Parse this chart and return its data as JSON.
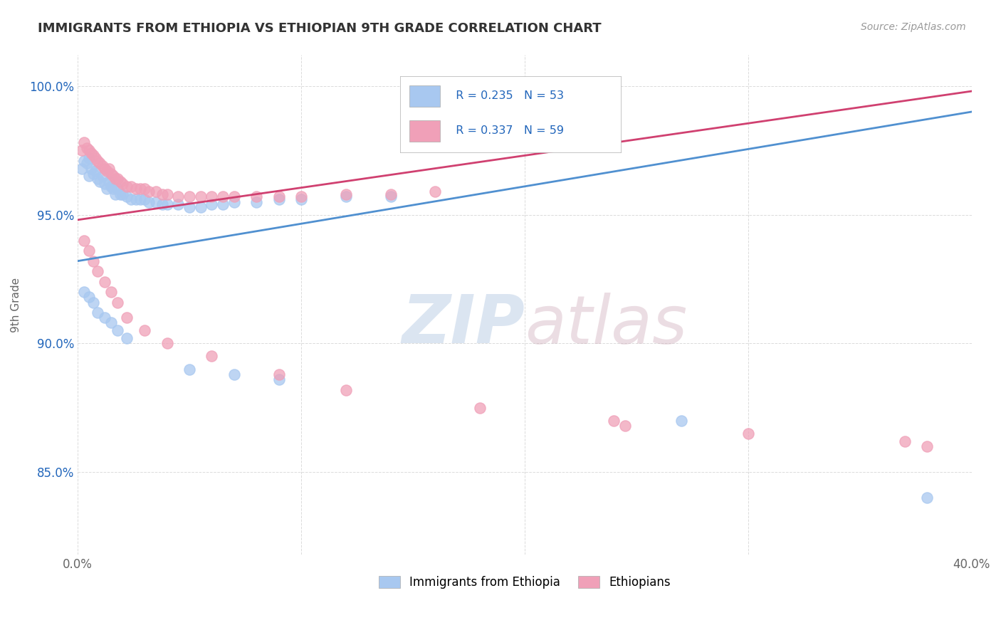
{
  "title": "IMMIGRANTS FROM ETHIOPIA VS ETHIOPIAN 9TH GRADE CORRELATION CHART",
  "source_text": "Source: ZipAtlas.com",
  "ylabel": "9th Grade",
  "xlim": [
    0.0,
    0.4
  ],
  "ylim": [
    0.818,
    1.012
  ],
  "y_ticks": [
    0.85,
    0.9,
    0.95,
    1.0
  ],
  "y_tick_labels": [
    "85.0%",
    "90.0%",
    "95.0%",
    "100.0%"
  ],
  "blue_color": "#a8c8f0",
  "pink_color": "#f0a0b8",
  "blue_line_color": "#5090d0",
  "pink_line_color": "#d04070",
  "legend_R_blue": "R = 0.235",
  "legend_N_blue": "N = 53",
  "legend_R_pink": "R = 0.337",
  "legend_N_pink": "N = 59",
  "legend_label_blue": "Immigrants from Ethiopia",
  "legend_label_pink": "Ethiopians",
  "title_color": "#333333",
  "axis_color": "#666666",
  "legend_text_color": "#2266bb",
  "watermark_zip": "ZIP",
  "watermark_atlas": "atlas",
  "background_color": "#ffffff",
  "blue_scatter_x": [
    0.002,
    0.003,
    0.004,
    0.005,
    0.005,
    0.006,
    0.007,
    0.008,
    0.009,
    0.01,
    0.011,
    0.012,
    0.013,
    0.014,
    0.015,
    0.016,
    0.017,
    0.018,
    0.019,
    0.02,
    0.022,
    0.024,
    0.026,
    0.028,
    0.03,
    0.032,
    0.035,
    0.038,
    0.04,
    0.045,
    0.05,
    0.055,
    0.06,
    0.065,
    0.07,
    0.08,
    0.09,
    0.1,
    0.12,
    0.14,
    0.003,
    0.005,
    0.007,
    0.009,
    0.012,
    0.015,
    0.018,
    0.022,
    0.05,
    0.07,
    0.09,
    0.27,
    0.38
  ],
  "blue_scatter_y": [
    0.968,
    0.971,
    0.97,
    0.972,
    0.965,
    0.968,
    0.966,
    0.967,
    0.964,
    0.963,
    0.965,
    0.962,
    0.96,
    0.963,
    0.961,
    0.96,
    0.958,
    0.96,
    0.958,
    0.958,
    0.957,
    0.956,
    0.956,
    0.956,
    0.956,
    0.955,
    0.955,
    0.954,
    0.954,
    0.954,
    0.953,
    0.953,
    0.954,
    0.954,
    0.955,
    0.955,
    0.956,
    0.956,
    0.957,
    0.957,
    0.92,
    0.918,
    0.916,
    0.912,
    0.91,
    0.908,
    0.905,
    0.902,
    0.89,
    0.888,
    0.886,
    0.87,
    0.84
  ],
  "pink_scatter_x": [
    0.002,
    0.003,
    0.004,
    0.005,
    0.006,
    0.007,
    0.008,
    0.009,
    0.01,
    0.011,
    0.012,
    0.013,
    0.014,
    0.015,
    0.016,
    0.017,
    0.018,
    0.019,
    0.02,
    0.022,
    0.024,
    0.026,
    0.028,
    0.03,
    0.032,
    0.035,
    0.038,
    0.04,
    0.045,
    0.05,
    0.055,
    0.06,
    0.065,
    0.07,
    0.08,
    0.09,
    0.1,
    0.12,
    0.14,
    0.16,
    0.003,
    0.005,
    0.007,
    0.009,
    0.012,
    0.015,
    0.018,
    0.022,
    0.03,
    0.04,
    0.06,
    0.09,
    0.12,
    0.18,
    0.24,
    0.245,
    0.3,
    0.37,
    0.38
  ],
  "pink_scatter_y": [
    0.975,
    0.978,
    0.976,
    0.975,
    0.974,
    0.973,
    0.972,
    0.971,
    0.97,
    0.969,
    0.968,
    0.967,
    0.968,
    0.966,
    0.965,
    0.964,
    0.964,
    0.963,
    0.962,
    0.961,
    0.961,
    0.96,
    0.96,
    0.96,
    0.959,
    0.959,
    0.958,
    0.958,
    0.957,
    0.957,
    0.957,
    0.957,
    0.957,
    0.957,
    0.957,
    0.957,
    0.957,
    0.958,
    0.958,
    0.959,
    0.94,
    0.936,
    0.932,
    0.928,
    0.924,
    0.92,
    0.916,
    0.91,
    0.905,
    0.9,
    0.895,
    0.888,
    0.882,
    0.875,
    0.87,
    0.868,
    0.865,
    0.862,
    0.86
  ]
}
